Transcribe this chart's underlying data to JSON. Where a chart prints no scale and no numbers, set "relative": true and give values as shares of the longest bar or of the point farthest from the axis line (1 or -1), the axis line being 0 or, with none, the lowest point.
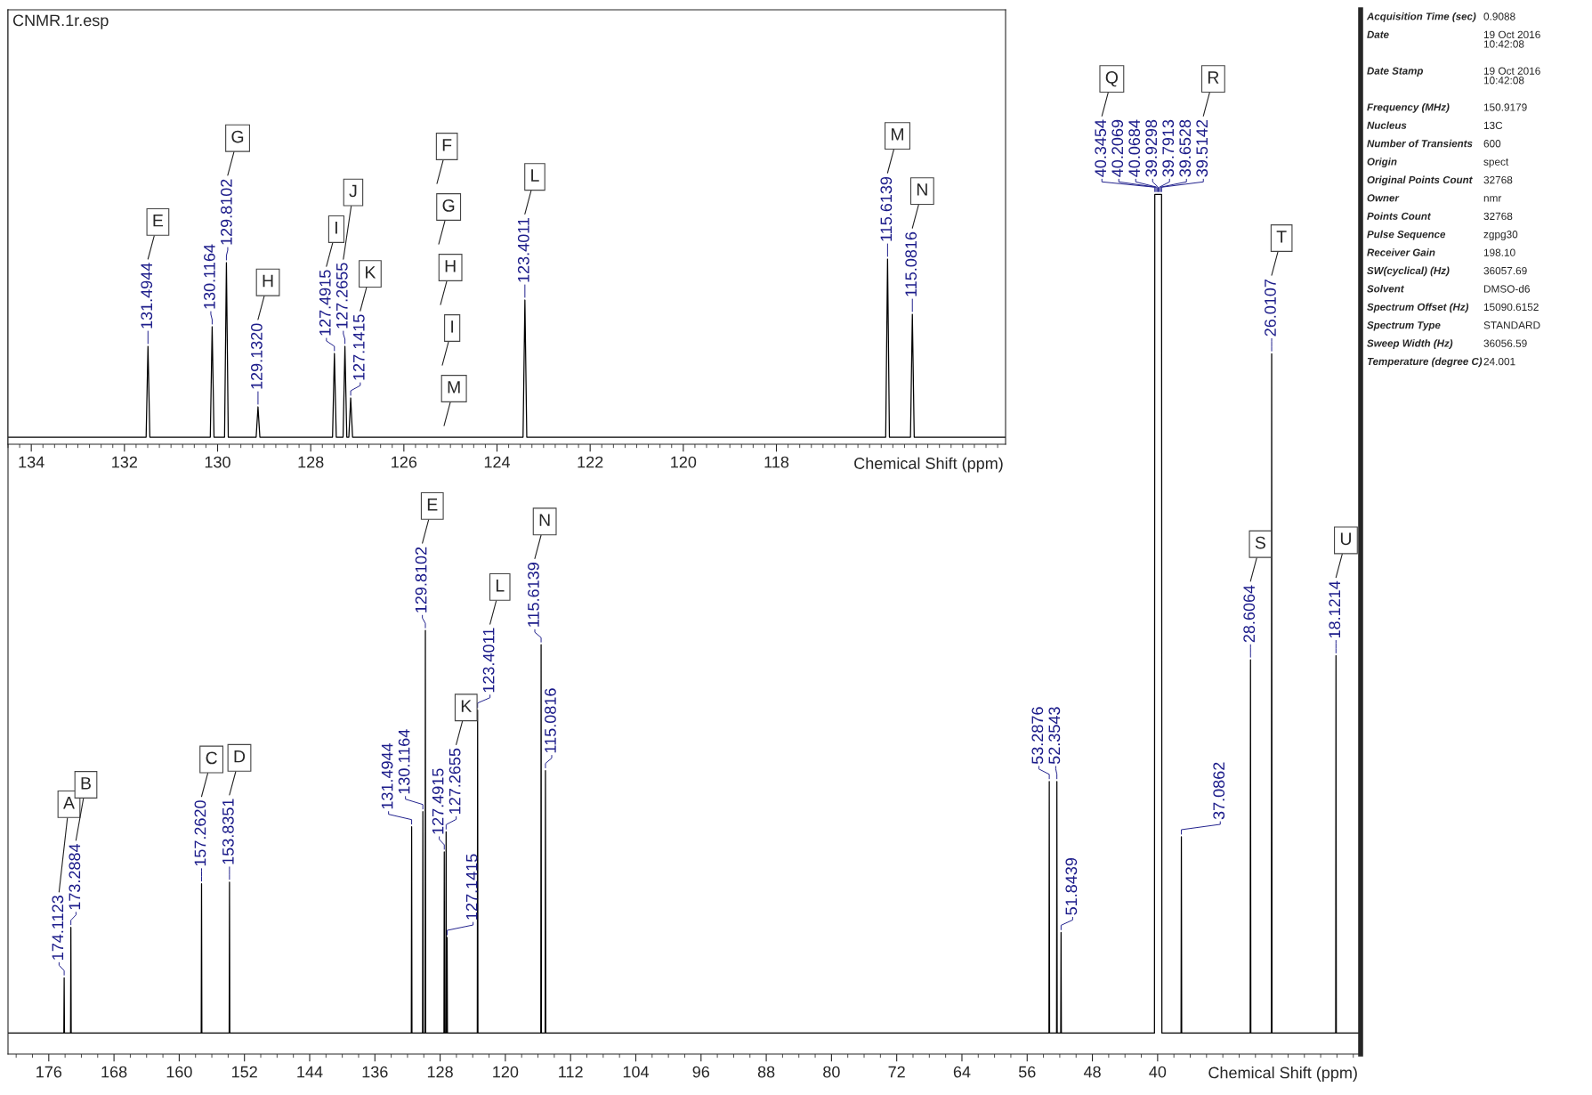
{
  "chart_data": [
    {
      "type": "line",
      "title": "CNMR.1r.esp",
      "xlabel": "Chemical Shift (ppm)",
      "relative": true,
      "xlim": [
        181.0,
        15.1
      ],
      "xticks": [
        176,
        168,
        160,
        152,
        144,
        136,
        128,
        120,
        112,
        104,
        96,
        88,
        80,
        72,
        64,
        56,
        48,
        40
      ],
      "series": [
        {
          "color": "#000000",
          "x": [
            181.0,
            174.1523,
            174.1123,
            174.0723,
            173.3284,
            173.2884,
            173.2484,
            157.302,
            157.262,
            157.222,
            153.8751,
            153.8351,
            153.7951,
            131.5344,
            131.4944,
            131.4544,
            130.1564,
            130.1164,
            130.0764,
            129.8502,
            129.8102,
            129.7702,
            127.5315,
            127.4915,
            127.4515,
            127.3055,
            127.2655,
            127.2255,
            127.1815,
            127.1415,
            127.1015,
            123.4411,
            123.4011,
            123.3611,
            115.6539,
            115.6139,
            115.5739,
            115.1216,
            115.0816,
            115.0416,
            53.3276,
            53.2876,
            53.2476,
            52.3943,
            52.3543,
            52.3143,
            51.8839,
            51.8439,
            51.8039,
            40.3854,
            40.3454,
            40.2069,
            40.0684,
            39.9298,
            39.7913,
            39.6528,
            39.5142,
            39.4742,
            37.1262,
            37.0862,
            37.0462,
            28.6464,
            28.6064,
            28.5664,
            26.0507,
            26.0107,
            25.9707,
            18.1614,
            18.1214,
            18.0814,
            15.1
          ],
          "values": [
            0,
            0,
            0.066,
            0,
            0,
            0.126,
            0,
            0,
            0.178,
            0,
            0,
            0.18,
            0,
            0,
            0.246,
            0,
            0,
            0.264,
            0,
            0,
            0.48,
            0,
            0,
            0.216,
            0,
            0,
            0.24,
            0,
            0,
            0.114,
            0,
            0,
            0.385,
            0,
            0,
            0.463,
            0,
            0,
            0.313,
            0,
            0,
            0.3,
            0,
            0,
            0.3,
            0,
            0,
            0.12,
            0,
            0,
            1,
            1,
            1,
            1,
            1,
            1,
            1,
            0,
            0,
            0.234,
            0,
            0,
            0.445,
            0,
            0,
            0.81,
            0,
            0,
            0.45,
            0,
            0
          ]
        }
      ],
      "annotations": [
        {
          "text": "174.1123",
          "x": 174.1123,
          "y": 0.066
        },
        "A",
        {
          "text": "173.2884",
          "x": 173.2884,
          "y": 0.126
        },
        "B",
        {
          "text": "157.2620",
          "x": 157.262,
          "y": 0.178
        },
        "C",
        {
          "text": "153.8351",
          "x": 153.8351,
          "y": 0.18
        },
        "D",
        {
          "text": "131.4944",
          "x": 131.4944,
          "y": 0.246
        },
        {
          "text": "130.1164",
          "x": 130.1164,
          "y": 0.264
        },
        {
          "text": "129.8102",
          "x": 129.8102,
          "y": 0.48
        },
        "E",
        {
          "text": "127.4915",
          "x": 127.4915,
          "y": 0.216
        },
        {
          "text": "127.2655",
          "x": 127.2655,
          "y": 0.24
        },
        "K",
        {
          "text": "127.1415",
          "x": 127.1415,
          "y": 0.114
        },
        {
          "text": "123.4011",
          "x": 123.4011,
          "y": 0.385
        },
        "L",
        {
          "text": "115.6139",
          "x": 115.6139,
          "y": 0.463
        },
        "N",
        {
          "text": "115.0816",
          "x": 115.0816,
          "y": 0.313
        },
        {
          "text": "53.2876",
          "x": 53.2876,
          "y": 0.3
        },
        {
          "text": "52.3543",
          "x": 52.3543,
          "y": 0.3
        },
        {
          "text": "51.8439",
          "x": 51.8439,
          "y": 0.12
        },
        {
          "text": "40.3454",
          "x": 40.3454,
          "y": 1
        },
        "Q",
        {
          "text": "40.2069",
          "x": 40.2069,
          "y": 1
        },
        {
          "text": "40.0684",
          "x": 40.0684,
          "y": 1
        },
        {
          "text": "39.9298",
          "x": 39.9298,
          "y": 1
        },
        {
          "text": "39.7913",
          "x": 39.7913,
          "y": 1
        },
        {
          "text": "39.6528",
          "x": 39.6528,
          "y": 1
        },
        {
          "text": "39.5142",
          "x": 39.5142,
          "y": 1
        },
        "R",
        {
          "text": "37.0862",
          "x": 37.0862,
          "y": 0.234
        },
        {
          "text": "28.6064",
          "x": 28.6064,
          "y": 0.445
        },
        "S",
        {
          "text": "26.0107",
          "x": 26.0107,
          "y": 0.81
        },
        "T",
        {
          "text": "18.1214",
          "x": 18.1214,
          "y": 0.45
        },
        "U"
      ]
    },
    {
      "type": "line",
      "xlabel": "Chemical Shift (ppm)",
      "relative": true,
      "xlim": [
        134.5,
        113.08
      ],
      "xticks": [
        134,
        132,
        130,
        128,
        126,
        124,
        122,
        120,
        118
      ],
      "series": [
        {
          "color": "#000000",
          "x": [
            134.5,
            131.5344,
            131.4944,
            131.4544,
            130.1564,
            130.1164,
            130.0764,
            129.8502,
            129.8102,
            129.7702,
            129.172,
            129.132,
            129.092,
            127.5315,
            127.4915,
            127.4515,
            127.3055,
            127.2655,
            127.2255,
            127.1815,
            127.1415,
            127.1015,
            123.4411,
            123.4011,
            123.3611,
            115.6539,
            115.6139,
            115.5739,
            115.1216,
            115.0816,
            115.0416,
            113.08
          ],
          "values": [
            0,
            0,
            0.51,
            0,
            0,
            0.62,
            0,
            0,
            0.98,
            0,
            0,
            0.17,
            0,
            0,
            0.47,
            0,
            0,
            0.51,
            0,
            0,
            0.22,
            0,
            0,
            0.77,
            0,
            0,
            1,
            0,
            0,
            0.69,
            0,
            0
          ]
        }
      ],
      "annotations": [
        {
          "text": "131.4944",
          "x": 131.4944,
          "y": 0.51
        },
        "E",
        {
          "text": "130.1164",
          "x": 130.1164,
          "y": 0.62
        },
        {
          "text": "129.8102",
          "x": 129.8102,
          "y": 0.98
        },
        "G",
        {
          "text": "129.1320",
          "x": 129.132,
          "y": 0.17
        },
        "H",
        {
          "text": "127.4915",
          "x": 127.4915,
          "y": 0.47
        },
        "I",
        {
          "text": "127.2655",
          "x": 127.2655,
          "y": 0.51
        },
        "J",
        {
          "text": "127.1415",
          "x": 127.1415,
          "y": 0.22
        },
        "K",
        {
          "text": "123.4011",
          "x": 123.4011,
          "y": 0.77
        },
        "L",
        {
          "text": "115.6139",
          "x": 115.6139,
          "y": 1
        },
        "M",
        {
          "text": "115.0816",
          "x": 115.0816,
          "y": 0.69
        },
        "N",
        "F",
        "G",
        "H",
        "I",
        "M"
      ]
    },
    {
      "type": "other",
      "annotations": [
        "Acquisition Time (sec)",
        "0.9088",
        "Date",
        "19 Oct 2016\n10:42:08",
        "Date Stamp",
        "19 Oct 2016\n10:42:08",
        "Frequency (MHz)",
        "150.9179",
        "Nucleus",
        "13C",
        "Number of Transients",
        "600",
        "Origin",
        "spect",
        "Original Points Count",
        "32768",
        "Owner",
        "nmr",
        "Points Count",
        "32768",
        "Pulse Sequence",
        "zgpg30",
        "Receiver Gain",
        "198.10",
        "SW(cyclical) (Hz)",
        "36057.69",
        "Solvent",
        "DMSO-d6",
        "Spectrum Offset (Hz)",
        "15090.6152",
        "Spectrum Type",
        "STANDARD",
        "Sweep Width (Hz)",
        "36056.59",
        "Temperature (degree C)",
        "24.001"
      ]
    }
  ]
}
